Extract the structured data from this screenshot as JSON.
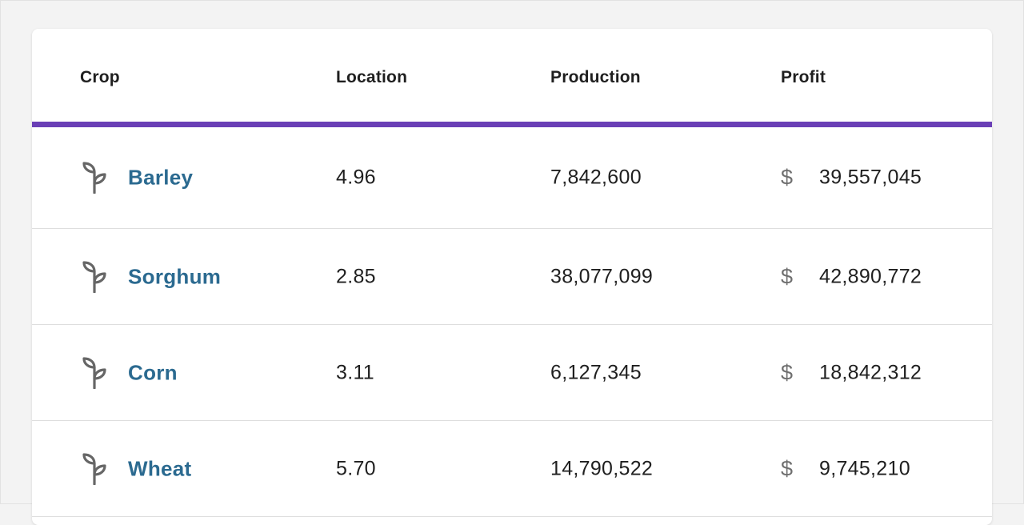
{
  "table": {
    "headers": {
      "crop": "Crop",
      "location": "Location",
      "production": "Production",
      "profit": "Profit"
    },
    "accent_color": "#6a3fb6",
    "link_color": "#2b6a90",
    "rows": [
      {
        "icon": "sprout-icon",
        "crop": "Barley",
        "location": "4.96",
        "production": "7,842,600",
        "currency": "$",
        "profit": "39,557,045"
      },
      {
        "icon": "sprout-icon",
        "crop": "Sorghum",
        "location": "2.85",
        "production": "38,077,099",
        "currency": "$",
        "profit": "42,890,772"
      },
      {
        "icon": "sprout-icon",
        "crop": "Corn",
        "location": "3.11",
        "production": "6,127,345",
        "currency": "$",
        "profit": "18,842,312"
      },
      {
        "icon": "sprout-icon",
        "crop": "Wheat",
        "location": "5.70",
        "production": "14,790,522",
        "currency": "$",
        "profit": "9,745,210"
      }
    ]
  }
}
